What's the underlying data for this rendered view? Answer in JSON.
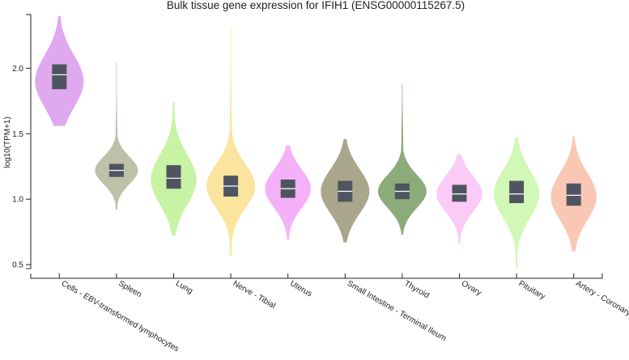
{
  "chart_data": {
    "type": "violin",
    "title": "Bulk tissue gene expression for IFIH1 (ENSG00000115267.5)",
    "xlabel": "",
    "ylabel": "log10(TPM+1)",
    "ylim": [
      0.47,
      2.41
    ],
    "yticks": [
      {
        "value": 0.5,
        "label": "0.5"
      },
      {
        "value": 1.0,
        "label": "1.0"
      },
      {
        "value": 1.5,
        "label": "1.5"
      },
      {
        "value": 2.0,
        "label": "2.0"
      }
    ],
    "series": [
      {
        "name": "Cells - EBV-transformed lymphocytes",
        "color": "#e0a8ef",
        "min": 1.56,
        "max": 2.4,
        "q1": 1.84,
        "median": 1.95,
        "q3": 2.03,
        "peak": 1.9,
        "width": 0.85
      },
      {
        "name": "Spleen",
        "color": "#bec0a8",
        "min": 0.92,
        "max": 2.05,
        "q1": 1.17,
        "median": 1.22,
        "q3": 1.27,
        "peak": 1.22,
        "width": 0.75
      },
      {
        "name": "Lung",
        "color": "#c9f3a4",
        "min": 0.72,
        "max": 1.74,
        "q1": 1.08,
        "median": 1.16,
        "q3": 1.26,
        "peak": 1.15,
        "width": 0.8
      },
      {
        "name": "Nerve - Tibial",
        "color": "#fbe49d",
        "min": 0.57,
        "max": 2.31,
        "q1": 1.02,
        "median": 1.1,
        "q3": 1.18,
        "peak": 1.1,
        "width": 0.85
      },
      {
        "name": "Uterus",
        "color": "#f5b1f7",
        "min": 0.69,
        "max": 1.41,
        "q1": 1.01,
        "median": 1.08,
        "q3": 1.15,
        "peak": 1.08,
        "width": 0.8
      },
      {
        "name": "Small Intestine - Terminal Ileum",
        "color": "#aaa68c",
        "min": 0.67,
        "max": 1.46,
        "q1": 0.98,
        "median": 1.06,
        "q3": 1.14,
        "peak": 1.06,
        "width": 0.85
      },
      {
        "name": "Thyroid",
        "color": "#8cab7b",
        "min": 0.73,
        "max": 1.88,
        "q1": 1.0,
        "median": 1.06,
        "q3": 1.12,
        "peak": 1.06,
        "width": 0.85
      },
      {
        "name": "Ovary",
        "color": "#fbcbf7",
        "min": 0.66,
        "max": 1.34,
        "q1": 0.98,
        "median": 1.04,
        "q3": 1.11,
        "peak": 1.04,
        "width": 0.8
      },
      {
        "name": "Pituitary",
        "color": "#d1f8b6",
        "min": 0.47,
        "max": 1.47,
        "q1": 0.97,
        "median": 1.04,
        "q3": 1.14,
        "peak": 1.04,
        "width": 0.8
      },
      {
        "name": "Artery - Coronary",
        "color": "#fbc7b5",
        "min": 0.6,
        "max": 1.48,
        "q1": 0.95,
        "median": 1.03,
        "q3": 1.12,
        "peak": 1.02,
        "width": 0.8
      }
    ]
  }
}
